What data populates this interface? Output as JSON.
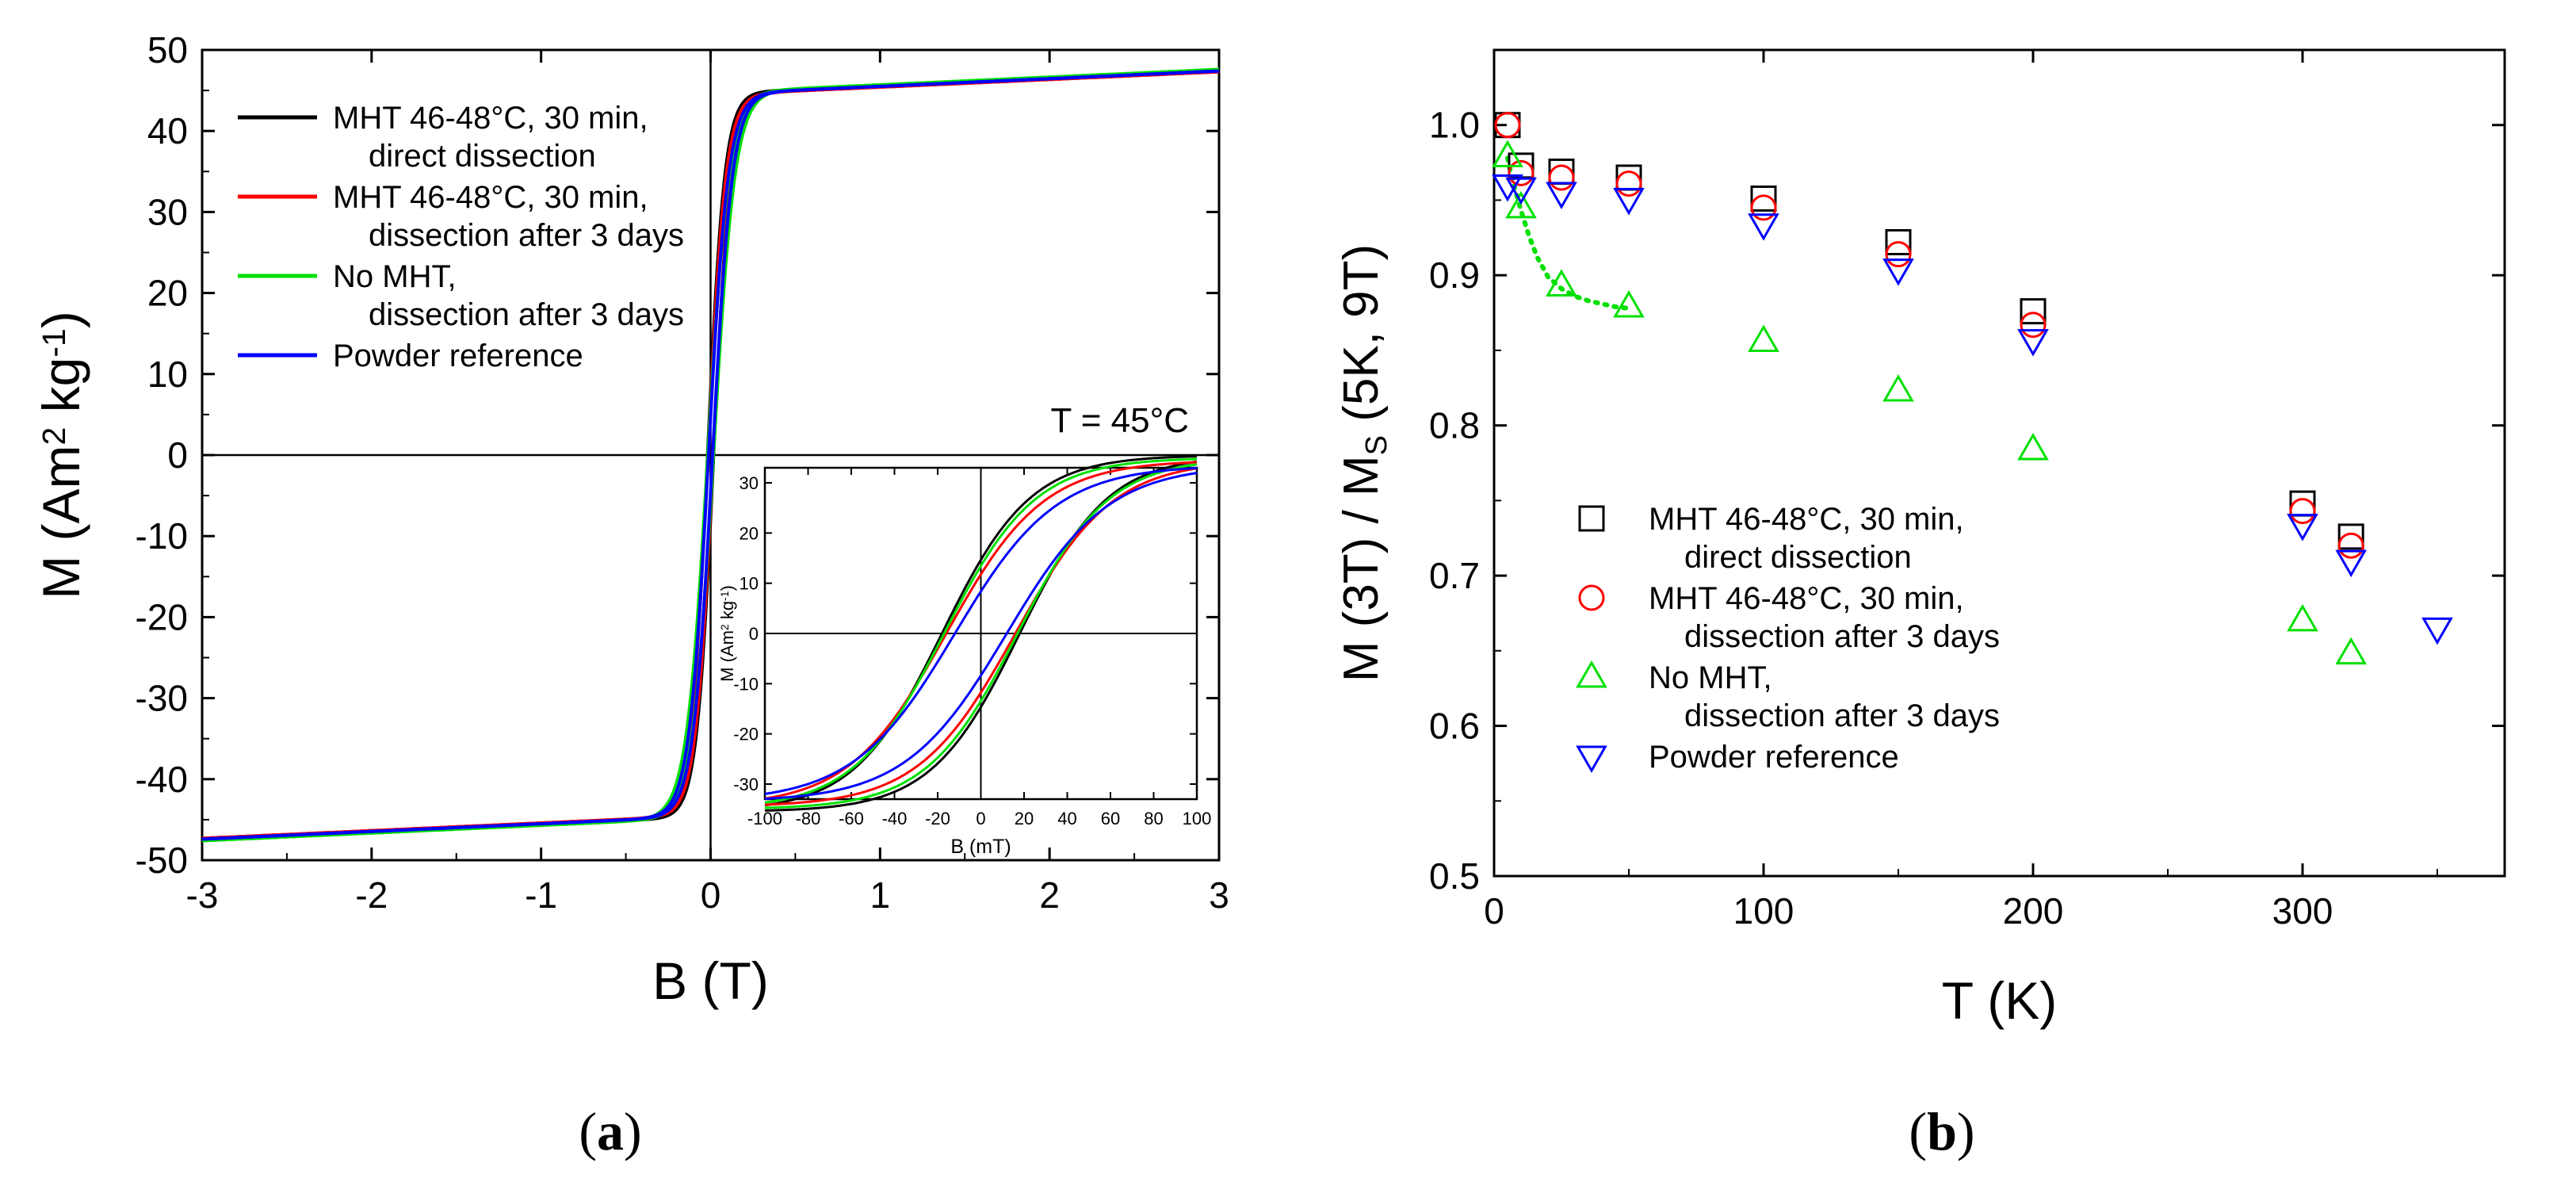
{
  "panels": {
    "a": {
      "label_open": "(",
      "label_letter": "a",
      "label_close": ")"
    },
    "b": {
      "label_open": "(",
      "label_letter": "b",
      "label_close": ")"
    }
  },
  "colors": {
    "black": "#000000",
    "red": "#ff0000",
    "green": "#00e000",
    "blue": "#0000ff"
  },
  "chart_data": [
    {
      "id": "a-main",
      "type": "line",
      "title": "",
      "xlabel": "B  (T)",
      "ylabel_parts": [
        "M  (Am",
        "2",
        " kg",
        "-1",
        ")"
      ],
      "xlim": [
        -3,
        3
      ],
      "ylim": [
        -50,
        50
      ],
      "xticks": [
        -3,
        -2,
        -1,
        0,
        1,
        2,
        3
      ],
      "yticks": [
        -50,
        -40,
        -30,
        -20,
        -10,
        0,
        10,
        20,
        30,
        40,
        50
      ],
      "annotation": "T = 45°C",
      "legend": [
        {
          "color": "#000000",
          "line1": "MHT 46-48°C, 30 min,",
          "line2": "direct dissection"
        },
        {
          "color": "#ff0000",
          "line1": "MHT 46-48°C, 30 min,",
          "line2": "dissection after 3 days"
        },
        {
          "color": "#00e000",
          "line1": "No MHT,",
          "line2": "dissection after 3 days"
        },
        {
          "color": "#0000ff",
          "line1": "Powder reference",
          "line2": ""
        }
      ],
      "series": [
        {
          "name": "MHT 46-48°C, 30 min, direct dissection",
          "color": "#000000",
          "ms": 47.5,
          "b0": 0.1,
          "bc": 0.018
        },
        {
          "name": "MHT 46-48°C, 30 min, dissection after 3 days",
          "color": "#ff0000",
          "ms": 47.3,
          "b0": 0.105,
          "bc": 0.016
        },
        {
          "name": "No MHT, dissection after 3 days",
          "color": "#00e000",
          "ms": 47.6,
          "b0": 0.125,
          "bc": 0.017
        },
        {
          "name": "Powder reference",
          "color": "#0000ff",
          "ms": 47.4,
          "b0": 0.115,
          "bc": 0.012
        }
      ]
    },
    {
      "id": "a-inset",
      "type": "line",
      "title": "",
      "xlabel": "B  (mT)",
      "ylabel_parts": [
        "M  (Am",
        "2",
        " kg",
        "-1",
        ")"
      ],
      "xlim": [
        -100,
        100
      ],
      "ylim": [
        -33,
        33
      ],
      "xticks": [
        -100,
        -80,
        -60,
        -40,
        -20,
        0,
        20,
        40,
        60,
        80,
        100
      ],
      "yticks": [
        -30,
        -20,
        -10,
        0,
        10,
        20,
        30
      ],
      "series": [
        {
          "name": "MHT 46-48°C, 30 min, direct dissection",
          "color": "#000000",
          "a": 35.5,
          "w": 41,
          "bc": 18
        },
        {
          "name": "MHT 46-48°C, 30 min, dissection after 3 days",
          "color": "#ff0000",
          "a": 34.5,
          "w": 45,
          "bc": 16
        },
        {
          "name": "No MHT, dissection after 3 days",
          "color": "#00e000",
          "a": 35.0,
          "w": 42,
          "bc": 17
        },
        {
          "name": "Powder reference",
          "color": "#0000ff",
          "a": 33.5,
          "w": 47,
          "bc": 12
        }
      ]
    },
    {
      "id": "b",
      "type": "scatter",
      "title": "",
      "xlabel": "T  (K)",
      "ylabel_parts": [
        "M (3T) / M",
        "S",
        " (5K, 9T)"
      ],
      "xlim": [
        0,
        375
      ],
      "ylim": [
        0.5,
        1.05
      ],
      "xticks": [
        0,
        100,
        200,
        300
      ],
      "yticks": [
        0.5,
        0.6,
        0.7,
        0.8,
        0.9,
        1.0
      ],
      "ytick_labels": [
        "0.5",
        "0.6",
        "0.7",
        "0.8",
        "0.9",
        "1.0"
      ],
      "legend": [
        {
          "color": "#000000",
          "marker": "square",
          "line1": "MHT 46-48°C, 30 min,",
          "line2": "direct dissection"
        },
        {
          "color": "#ff0000",
          "marker": "circle",
          "line1": "MHT 46-48°C, 30 min,",
          "line2": "dissection after 3 days"
        },
        {
          "color": "#00e000",
          "marker": "triangle-up",
          "line1": "No MHT,",
          "line2": "dissection after 3 days"
        },
        {
          "color": "#0000ff",
          "marker": "triangle-down",
          "line1": "Powder reference",
          "line2": ""
        }
      ],
      "series": [
        {
          "name": "MHT 46-48°C, 30 min, direct dissection",
          "marker": "square",
          "color": "#000000",
          "x": [
            5,
            10,
            25,
            50,
            100,
            150,
            200,
            300,
            318
          ],
          "y": [
            1.0,
            0.973,
            0.969,
            0.965,
            0.951,
            0.922,
            0.876,
            0.748,
            0.726
          ]
        },
        {
          "name": "MHT 46-48°C, 30 min, dissection after 3 days",
          "marker": "circle",
          "color": "#ff0000",
          "x": [
            5,
            10,
            25,
            50,
            100,
            150,
            200,
            300,
            318
          ],
          "y": [
            1.0,
            0.968,
            0.965,
            0.961,
            0.945,
            0.914,
            0.867,
            0.743,
            0.72
          ]
        },
        {
          "name": "No MHT, dissection after 3 days",
          "marker": "triangle-up",
          "color": "#00e000",
          "x": [
            5,
            10,
            25,
            50,
            100,
            150,
            200,
            300,
            318
          ],
          "y": [
            0.979,
            0.945,
            0.893,
            0.879,
            0.856,
            0.823,
            0.784,
            0.67,
            0.648
          ]
        },
        {
          "name": "Powder reference",
          "marker": "triangle-down",
          "color": "#0000ff",
          "x": [
            5,
            10,
            25,
            50,
            100,
            150,
            200,
            300,
            318,
            350
          ],
          "y": [
            0.96,
            0.958,
            0.955,
            0.951,
            0.934,
            0.904,
            0.857,
            0.734,
            0.71,
            0.665
          ]
        }
      ],
      "fit_curve": {
        "color": "#00e000",
        "style": "dotted",
        "x": [
          5,
          7,
          10,
          13,
          16,
          20,
          25,
          30,
          35,
          40,
          45,
          50
        ],
        "y": [
          0.978,
          0.962,
          0.943,
          0.926,
          0.912,
          0.899,
          0.891,
          0.886,
          0.883,
          0.881,
          0.879,
          0.878
        ]
      }
    }
  ]
}
